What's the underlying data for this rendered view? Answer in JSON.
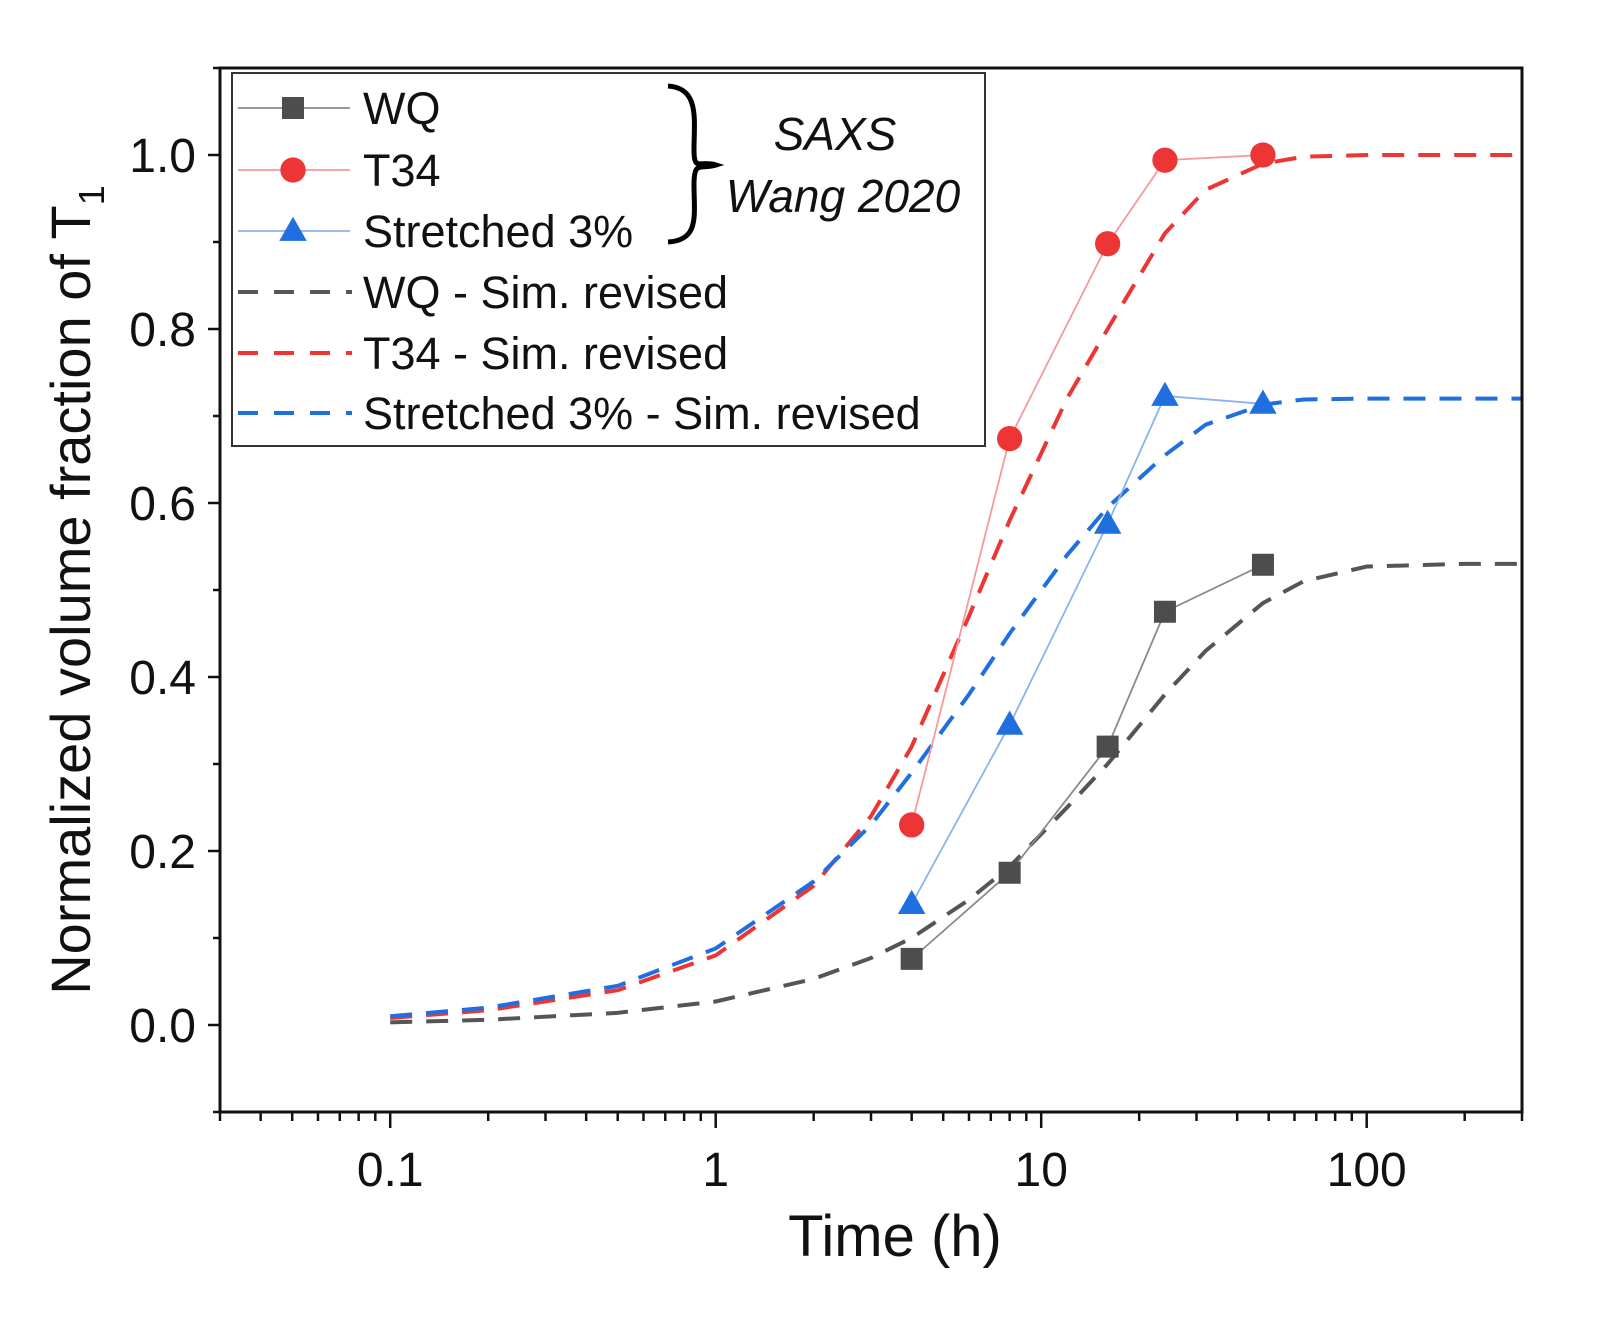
{
  "chart_data": {
    "type": "line",
    "title": "",
    "xlabel": "Time (h)",
    "ylabel": "Normalized volume fraction of T",
    "ylabel_subscript": "1",
    "xscale": "log",
    "xlim": [
      0.03,
      300
    ],
    "ylim": [
      -0.1,
      1.1
    ],
    "xticks": [
      0.1,
      1,
      10,
      100
    ],
    "xtick_labels": [
      "0.1",
      "1",
      "10",
      "100"
    ],
    "yticks": [
      0.0,
      0.2,
      0.4,
      0.6,
      0.8,
      1.0
    ],
    "ytick_labels": [
      "0.0",
      "0.2",
      "0.4",
      "0.6",
      "0.8",
      "1.0"
    ],
    "grid": false,
    "legend_placement": "top-left",
    "annotation": {
      "line1": "SAXS",
      "line2": "Wang 2020"
    },
    "series": [
      {
        "name": "WQ",
        "kind": "experimental",
        "marker": "square",
        "color": "#4d4d4d",
        "line_color": "#8a8a8a",
        "x": [
          4,
          8,
          16,
          24,
          48
        ],
        "y": [
          0.076,
          0.175,
          0.32,
          0.475,
          0.529
        ]
      },
      {
        "name": "T34",
        "kind": "experimental",
        "marker": "circle",
        "color": "#ee3535",
        "line_color": "#f59a9a",
        "x": [
          4,
          8,
          16,
          24,
          48
        ],
        "y": [
          0.23,
          0.674,
          0.898,
          0.994,
          1.0
        ]
      },
      {
        "name": "Stretched 3%",
        "kind": "experimental",
        "marker": "triangle",
        "color": "#1f6fe0",
        "line_color": "#8ab4ee",
        "x": [
          4,
          8,
          16,
          24,
          48
        ],
        "y": [
          0.139,
          0.345,
          0.576,
          0.723,
          0.714
        ]
      },
      {
        "name": "WQ - Sim. revised",
        "kind": "simulation",
        "marker": "none",
        "color": "#555555",
        "x": [
          0.1,
          0.2,
          0.5,
          1,
          2,
          3,
          4,
          6,
          8,
          12,
          16,
          24,
          32,
          48,
          64,
          100,
          200,
          300
        ],
        "y": [
          0.003,
          0.006,
          0.014,
          0.027,
          0.053,
          0.077,
          0.1,
          0.144,
          0.182,
          0.25,
          0.3,
          0.38,
          0.43,
          0.485,
          0.51,
          0.527,
          0.53,
          0.53
        ]
      },
      {
        "name": "T34 - Sim. revised",
        "kind": "simulation",
        "marker": "none",
        "color": "#ee3535",
        "x": [
          0.1,
          0.2,
          0.5,
          1,
          2,
          3,
          4,
          6,
          8,
          12,
          16,
          24,
          32,
          48,
          64,
          100,
          200,
          300
        ],
        "y": [
          0.008,
          0.017,
          0.04,
          0.08,
          0.16,
          0.24,
          0.32,
          0.47,
          0.58,
          0.72,
          0.8,
          0.91,
          0.96,
          0.99,
          0.998,
          1.0,
          1.0,
          1.0
        ]
      },
      {
        "name": "Stretched 3% - Sim. revised",
        "kind": "simulation",
        "marker": "none",
        "color": "#1f6fe0",
        "x": [
          0.1,
          0.2,
          0.5,
          1,
          2,
          3,
          4,
          6,
          8,
          12,
          16,
          24,
          32,
          48,
          64,
          100,
          200,
          300
        ],
        "y": [
          0.01,
          0.02,
          0.045,
          0.088,
          0.165,
          0.23,
          0.29,
          0.38,
          0.45,
          0.54,
          0.595,
          0.655,
          0.69,
          0.713,
          0.719,
          0.72,
          0.72,
          0.72
        ]
      }
    ]
  }
}
